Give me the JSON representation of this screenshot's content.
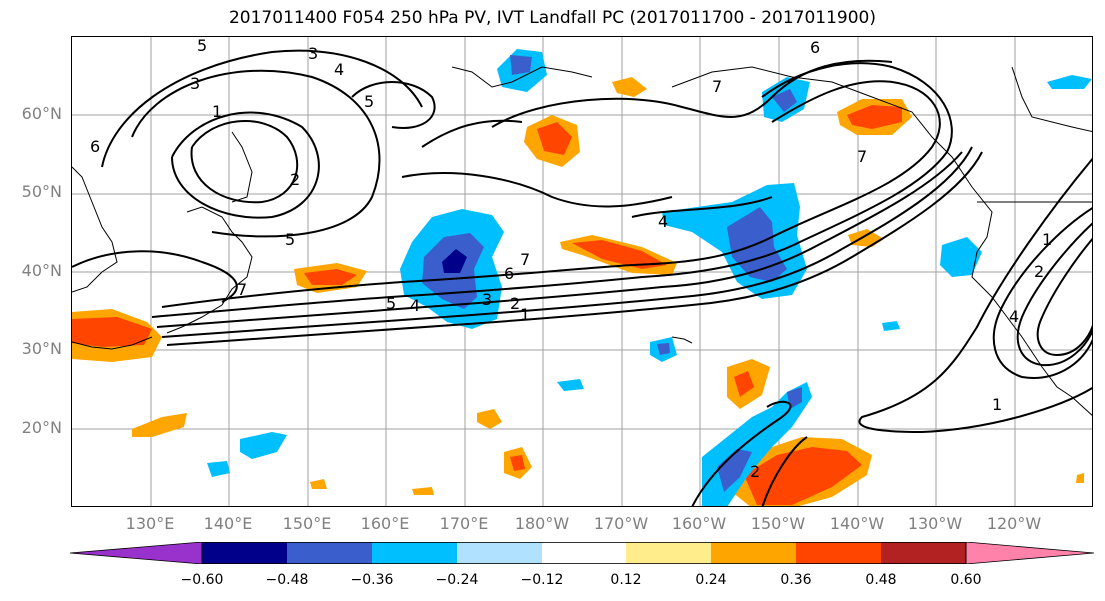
{
  "title": "2017011400 F054 250 hPa PV, IVT Landfall PC (2017011700 - 2017011900)",
  "lat_labels": [
    "60°N",
    "50°N",
    "40°N",
    "30°N",
    "20°N"
  ],
  "lon_labels": [
    "130°E",
    "140°E",
    "150°E",
    "160°E",
    "170°E",
    "180°W",
    "170°W",
    "160°W",
    "150°W",
    "140°W",
    "130°W",
    "120°W"
  ],
  "colorbar": {
    "ticks": [
      "−0.60",
      "−0.48",
      "−0.36",
      "−0.24",
      "−0.12",
      "0.12",
      "0.24",
      "0.36",
      "0.48",
      "0.60"
    ],
    "colors": [
      "#9932cc",
      "#00008b",
      "#3a5fcd",
      "#00bfff",
      "#b0e2ff",
      "#ffffff",
      "#ffec8b",
      "#ffa500",
      "#ff4500",
      "#b22222",
      "#ff82ab"
    ]
  },
  "contour_labels": [
    "3",
    "5",
    "4",
    "1",
    "2",
    "6",
    "3",
    "5",
    "7",
    "5",
    "4",
    "7",
    "6",
    "3",
    "2",
    "1",
    "7",
    "4",
    "6",
    "7",
    "1",
    "1",
    "2",
    "4",
    "5",
    "2"
  ]
}
